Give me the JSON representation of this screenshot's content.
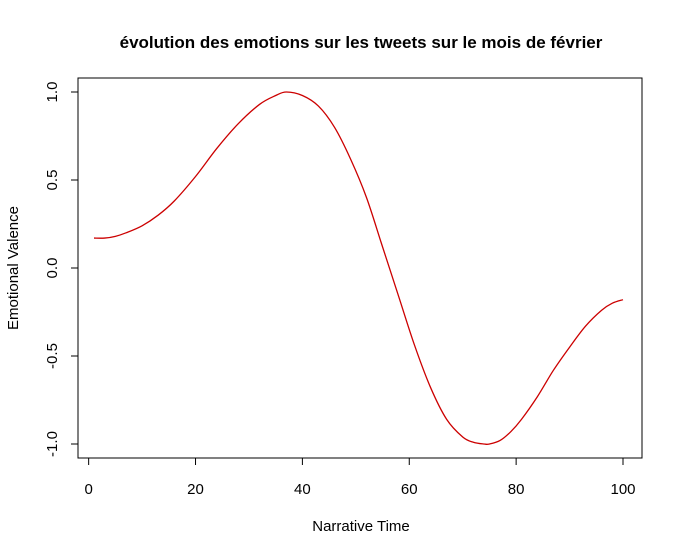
{
  "chart_data": {
    "type": "line",
    "title": "évolution des emotions sur les tweets sur le mois de février",
    "xlabel": "Narrative Time",
    "ylabel": "Emotional Valence",
    "xlim": [
      1,
      100
    ],
    "ylim": [
      -1.0,
      1.0
    ],
    "xticks": [
      0,
      20,
      40,
      60,
      80,
      100
    ],
    "xtick_labels": [
      "0",
      "20",
      "40",
      "60",
      "80",
      "100"
    ],
    "yticks": [
      -1.0,
      -0.5,
      0.0,
      0.5,
      1.0
    ],
    "ytick_labels": [
      "-1.0",
      "-0.5",
      "0.0",
      "0.5",
      "1.0"
    ],
    "grid": false,
    "legend": "none",
    "series": [
      {
        "color": "#cc0000",
        "x": [
          1,
          3,
          5,
          7,
          10,
          13,
          16,
          20,
          24,
          28,
          32,
          35,
          37,
          40,
          43,
          46,
          49,
          52,
          55,
          58,
          61,
          64,
          67,
          70,
          72,
          74,
          75,
          77,
          79,
          81,
          84,
          87,
          90,
          93,
          96,
          98,
          100
        ],
        "y": [
          0.17,
          0.17,
          0.18,
          0.2,
          0.24,
          0.3,
          0.38,
          0.52,
          0.68,
          0.82,
          0.93,
          0.98,
          1.0,
          0.98,
          0.92,
          0.8,
          0.62,
          0.4,
          0.12,
          -0.16,
          -0.44,
          -0.68,
          -0.86,
          -0.96,
          -0.99,
          -1.0,
          -1.0,
          -0.98,
          -0.93,
          -0.86,
          -0.73,
          -0.58,
          -0.45,
          -0.33,
          -0.24,
          -0.2,
          -0.18
        ]
      }
    ]
  }
}
